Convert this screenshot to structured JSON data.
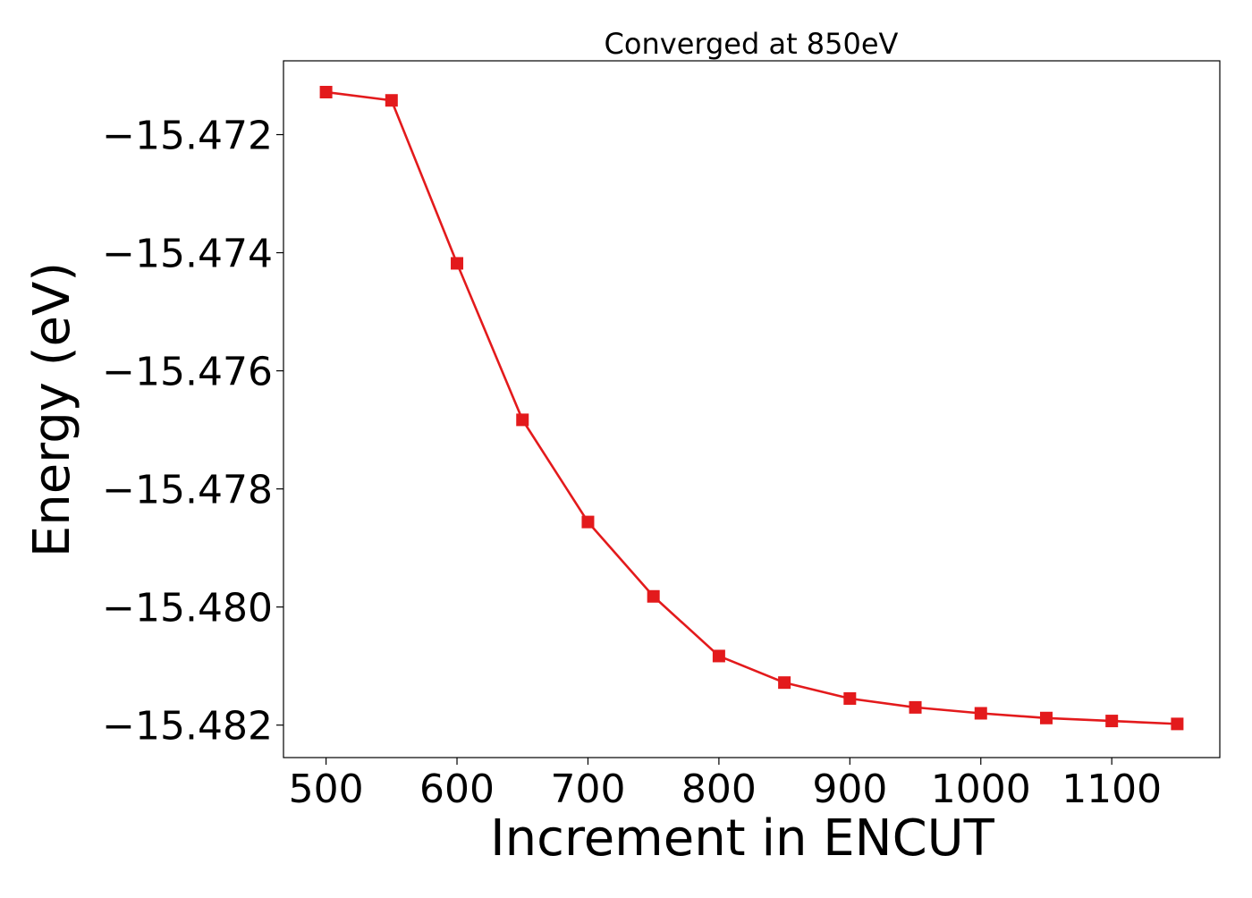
{
  "chart_data": {
    "type": "line",
    "title": "Converged at 850eV",
    "xlabel": "Increment in ENCUT",
    "ylabel": "Energy (eV)",
    "xlim": [
      467.5,
      1182.5
    ],
    "ylim": [
      -15.48255,
      -15.47075
    ],
    "x_ticks": [
      500,
      600,
      700,
      800,
      900,
      1000,
      1100
    ],
    "x_tick_labels": [
      "500",
      "600",
      "700",
      "800",
      "900",
      "1000",
      "1100"
    ],
    "y_ticks": [
      -15.472,
      -15.474,
      -15.476,
      -15.478,
      -15.48,
      -15.482
    ],
    "y_tick_labels": [
      "−15.472",
      "−15.474",
      "−15.476",
      "−15.478",
      "−15.480",
      "−15.482"
    ],
    "grid": false,
    "series": [
      {
        "color": "#e31a1c",
        "marker": "square",
        "x": [
          500,
          550,
          600,
          650,
          700,
          750,
          800,
          850,
          900,
          950,
          1000,
          1050,
          1100,
          1150
        ],
        "y": [
          -15.47128,
          -15.47142,
          -15.47418,
          -15.47683,
          -15.47856,
          -15.47982,
          -15.48083,
          -15.48128,
          -15.48155,
          -15.4817,
          -15.4818,
          -15.48188,
          -15.48193,
          -15.48198
        ]
      }
    ]
  }
}
